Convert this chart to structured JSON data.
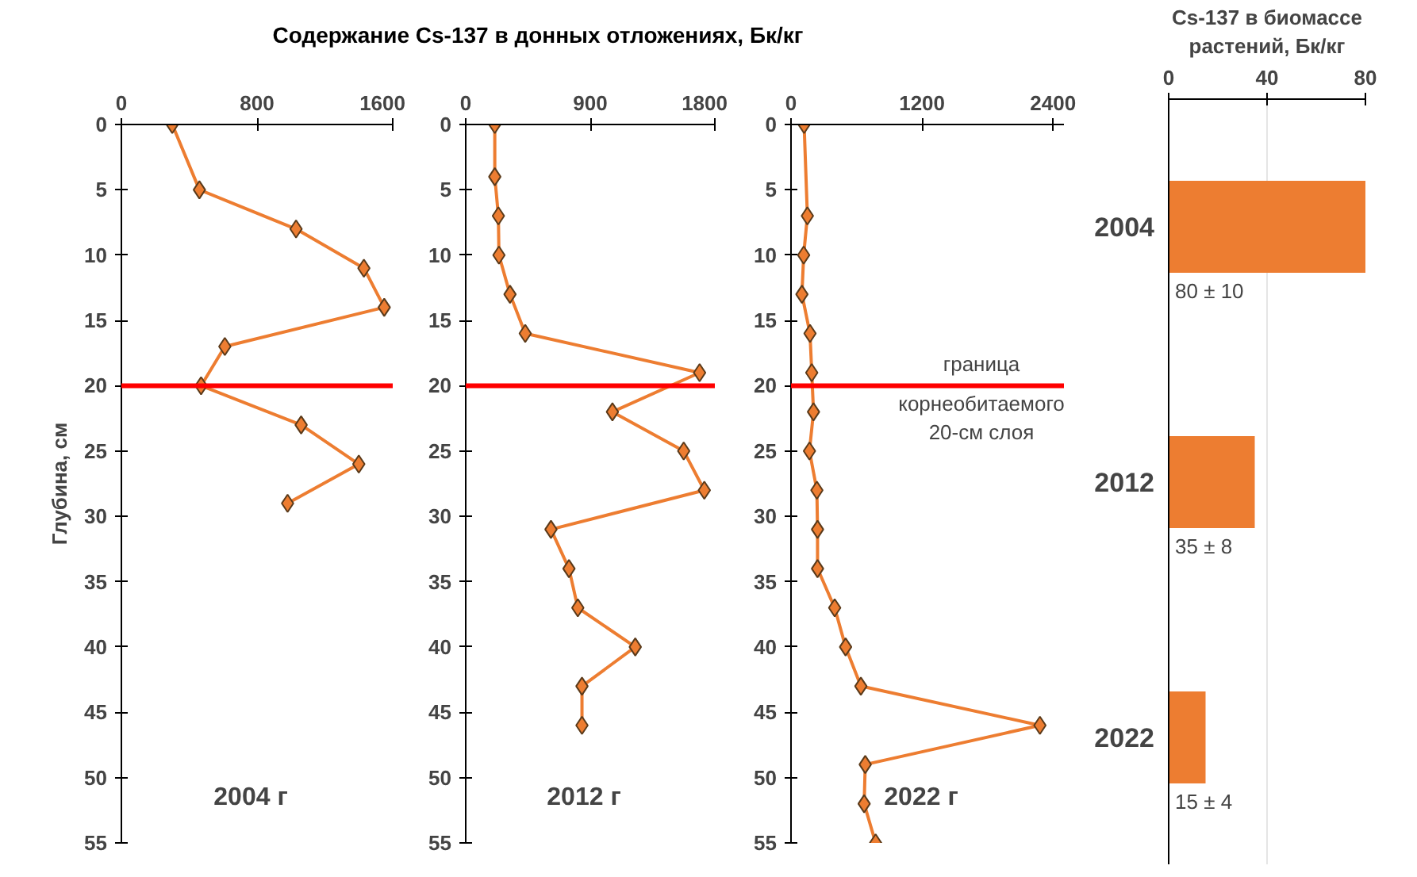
{
  "chart_data": [
    {
      "type": "line",
      "title": "2004 г",
      "ylabel": "Глубина, см",
      "marker": "diamond",
      "line_style": "solid",
      "grid": false,
      "xlim": [
        0,
        1600
      ],
      "xticks": [
        0,
        800,
        1600
      ],
      "ylim": [
        55,
        0
      ],
      "yticks": [
        0,
        5,
        10,
        15,
        20,
        25,
        30,
        35,
        40,
        45,
        50,
        55
      ],
      "series": [
        {
          "color": "#ed7d31",
          "x": [
            300,
            460,
            1030,
            1430,
            1550,
            610,
            470,
            1060,
            1400,
            980
          ],
          "values": [
            0,
            5,
            8,
            11,
            14,
            17,
            20,
            23,
            26,
            29
          ]
        }
      ],
      "ref_lines": [
        {
          "axis": "y",
          "value": 20,
          "color": "#ff0000"
        }
      ]
    },
    {
      "type": "line",
      "title": "2012 г",
      "xlabel": "Содержание Cs-137 в донных отложениях, Бк/кг",
      "marker": "diamond",
      "line_style": "solid",
      "grid": false,
      "xlim": [
        0,
        1800
      ],
      "xticks": [
        0,
        900,
        1800
      ],
      "ylim": [
        55,
        0
      ],
      "yticks": [
        0,
        5,
        10,
        15,
        20,
        25,
        30,
        35,
        40,
        45,
        50,
        55
      ],
      "series": [
        {
          "color": "#ed7d31",
          "x": [
            210,
            210,
            236,
            240,
            320,
            430,
            1690,
            1060,
            1575,
            1724,
            616,
            746,
            810,
            1225,
            840,
            840
          ],
          "values": [
            0,
            4,
            7,
            10,
            13,
            16,
            19,
            22,
            25,
            28,
            31,
            34,
            37,
            40,
            43,
            46
          ]
        }
      ],
      "ref_lines": [
        {
          "axis": "y",
          "value": 20,
          "color": "#ff0000"
        }
      ]
    },
    {
      "type": "line",
      "title": "2022 г",
      "marker": "diamond",
      "line_style": "solid",
      "grid": false,
      "xlim": [
        0,
        2500
      ],
      "xticks": [
        0,
        1200,
        2400
      ],
      "ylim": [
        55,
        0
      ],
      "yticks": [
        0,
        5,
        10,
        15,
        20,
        25,
        30,
        35,
        40,
        45,
        50,
        55
      ],
      "series": [
        {
          "color": "#ed7d31",
          "x": [
            120,
            150,
            116,
            100,
            174,
            190,
            206,
            169,
            237,
            243,
            243,
            400,
            500,
            640,
            2280,
            680,
            670,
            775
          ],
          "values": [
            0,
            7,
            10,
            13,
            16,
            19,
            22,
            25,
            28,
            31,
            34,
            37,
            40,
            43,
            46,
            49,
            52,
            55
          ]
        }
      ],
      "ref_lines": [
        {
          "axis": "y",
          "value": 20,
          "color": "#ff0000"
        }
      ],
      "annotations": [
        {
          "text": "граница корнеобитаемого 20-см слоя",
          "y": 20
        }
      ]
    },
    {
      "type": "bar",
      "orientation": "horizontal",
      "xlabel": "Cs-137 в биомассе растений, Бк/кг",
      "categories": [
        "2004",
        "2012",
        "2022"
      ],
      "values": [
        80,
        35,
        15
      ],
      "color": "#ed7d31",
      "value_labels": [
        "80 ± 10",
        "35 ± 8",
        "15 ± 4"
      ],
      "xlim": [
        0,
        80
      ],
      "xticks": [
        0,
        40,
        80
      ],
      "grid": "x"
    }
  ]
}
